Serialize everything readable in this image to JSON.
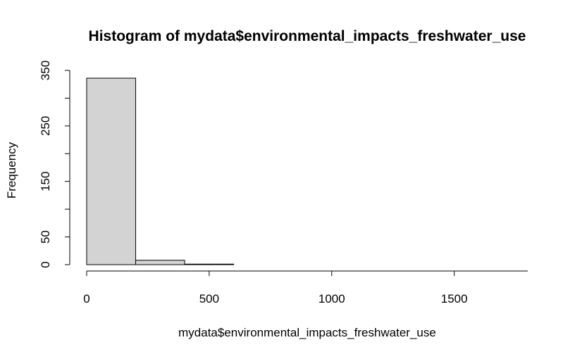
{
  "chart_data": {
    "type": "bar",
    "subtype": "histogram",
    "title": "Histogram of mydata$environmental_impacts_freshwater_use",
    "xlabel": "mydata$environmental_impacts_freshwater_use",
    "ylabel": "Frequency",
    "bins": [
      {
        "x0": 0,
        "x1": 200,
        "count": 336
      },
      {
        "x0": 200,
        "x1": 400,
        "count": 8
      },
      {
        "x0": 400,
        "x1": 600,
        "count": 1
      },
      {
        "x0": 600,
        "x1": 800,
        "count": 0
      },
      {
        "x0": 800,
        "x1": 1000,
        "count": 0
      },
      {
        "x0": 1000,
        "x1": 1200,
        "count": 0
      },
      {
        "x0": 1200,
        "x1": 1400,
        "count": 0
      },
      {
        "x0": 1400,
        "x1": 1600,
        "count": 0
      },
      {
        "x0": 1600,
        "x1": 1800,
        "count": 0
      }
    ],
    "xlim": [
      0,
      1800
    ],
    "ylim": [
      0,
      350
    ],
    "x_ticks": [
      0,
      500,
      1000,
      1500
    ],
    "x_tick_labels": [
      "0",
      "500",
      "1000",
      "1500"
    ],
    "y_ticks": [
      0,
      50,
      100,
      150,
      200,
      250,
      300,
      350
    ],
    "y_tick_labels": [
      "0",
      "50",
      "",
      "150",
      "",
      "250",
      "",
      "350"
    ],
    "bar_color": "#d3d3d3",
    "grid": false,
    "legend": "none"
  }
}
